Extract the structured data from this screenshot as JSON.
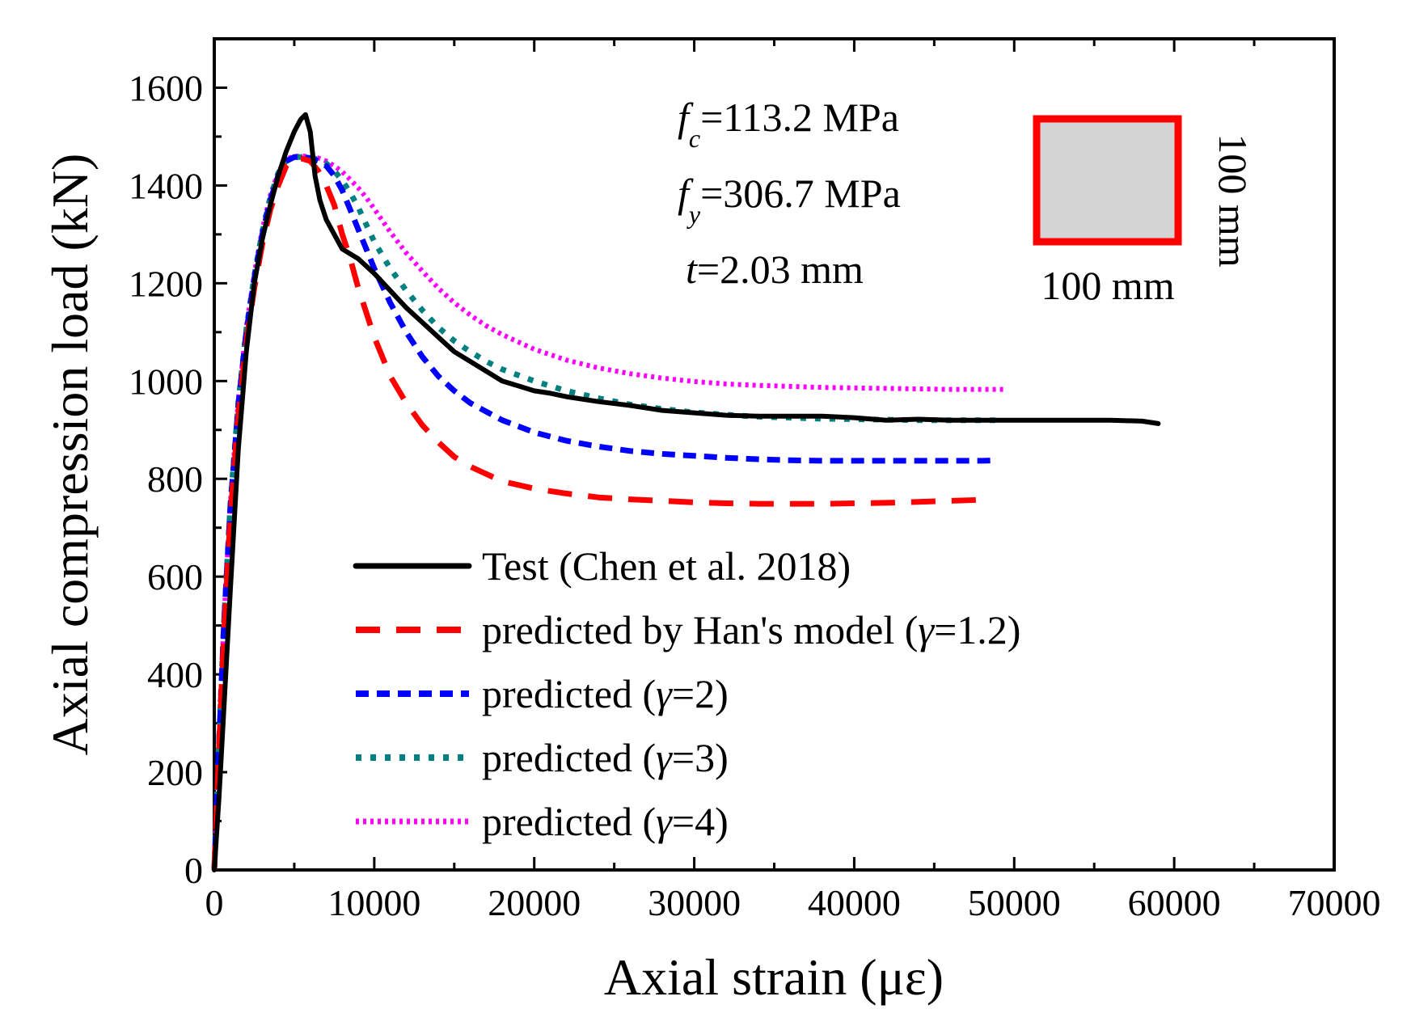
{
  "chart_data": {
    "type": "line",
    "xlabel": "Axial strain (με)",
    "ylabel": "Axial compression load (kN)",
    "xlim": [
      0,
      70000
    ],
    "ylim": [
      0,
      1700
    ],
    "x_ticks": [
      0,
      10000,
      20000,
      30000,
      40000,
      50000,
      60000,
      70000
    ],
    "x_tick_labels": [
      "0",
      "10000",
      "20000",
      "30000",
      "40000",
      "50000",
      "60000",
      "70000"
    ],
    "y_ticks": [
      0,
      200,
      400,
      600,
      800,
      1000,
      1200,
      1400,
      1600
    ],
    "y_tick_labels": [
      "0",
      "200",
      "400",
      "600",
      "800",
      "1000",
      "1200",
      "1400",
      "1600"
    ],
    "grid": false,
    "legend_position": "bottom-center",
    "series": [
      {
        "name": "Test (Chen et al. 2018)",
        "legend_main": "Test (Chen et al. 2018)",
        "legend_greek": "",
        "legend_tail": "",
        "color": "#000000",
        "style": "solid",
        "x": [
          0,
          300,
          600,
          1000,
          1500,
          2000,
          2500,
          3000,
          3500,
          4000,
          4500,
          5000,
          5400,
          5700,
          6000,
          6300,
          6600,
          7000,
          7500,
          8000,
          9000,
          10000,
          11000,
          12000,
          13000,
          14000,
          15000,
          16000,
          17000,
          18000,
          19000,
          20000,
          21000,
          22000,
          24000,
          26000,
          28000,
          30000,
          32000,
          34000,
          36000,
          38000,
          40000,
          42000,
          44000,
          46000,
          48000,
          50000,
          52000,
          54000,
          56000,
          58000,
          59000
        ],
        "y": [
          0,
          150,
          330,
          570,
          860,
          1060,
          1200,
          1290,
          1360,
          1420,
          1470,
          1510,
          1535,
          1545,
          1510,
          1420,
          1370,
          1330,
          1300,
          1270,
          1250,
          1220,
          1185,
          1150,
          1120,
          1090,
          1060,
          1040,
          1020,
          1000,
          990,
          980,
          975,
          968,
          958,
          950,
          940,
          935,
          930,
          928,
          928,
          928,
          925,
          920,
          922,
          920,
          920,
          920,
          920,
          920,
          920,
          918,
          913
        ]
      },
      {
        "name": "predicted by Han's model (γ=1.2)",
        "legend_main": "predicted by Han's model (",
        "legend_greek": "γ",
        "legend_tail": "=1.2)",
        "color": "#ff0000",
        "style": "long-dash",
        "x": [
          0,
          300,
          600,
          1000,
          1500,
          2000,
          2500,
          3000,
          3500,
          4000,
          4500,
          5000,
          5500,
          6000,
          6500,
          7000,
          7500,
          8000,
          8500,
          9000,
          9500,
          10000,
          11000,
          12000,
          13000,
          14000,
          15000,
          16000,
          18000,
          20000,
          22000,
          24000,
          26000,
          28000,
          30000,
          32000,
          34000,
          36000,
          38000,
          40000,
          42000,
          44000,
          46000,
          48000
        ],
        "y": [
          0,
          250,
          480,
          720,
          930,
          1080,
          1190,
          1280,
          1350,
          1400,
          1440,
          1455,
          1455,
          1450,
          1430,
          1400,
          1360,
          1300,
          1250,
          1190,
          1140,
          1090,
          1010,
          955,
          910,
          875,
          845,
          825,
          795,
          780,
          770,
          762,
          758,
          755,
          752,
          750,
          749,
          749,
          749,
          750,
          751,
          753,
          755,
          757
        ]
      },
      {
        "name": "predicted (γ=2)",
        "legend_main": "predicted (",
        "legend_greek": "γ",
        "legend_tail": "=2)",
        "color": "#0000ff",
        "style": "dash",
        "x": [
          0,
          300,
          600,
          1000,
          1500,
          2000,
          2500,
          3000,
          3500,
          4000,
          4500,
          5000,
          5500,
          6000,
          6500,
          7000,
          7500,
          8000,
          8500,
          9000,
          9500,
          10000,
          11000,
          12000,
          13000,
          14000,
          15000,
          16000,
          18000,
          20000,
          22000,
          24000,
          26000,
          28000,
          30000,
          32000,
          34000,
          36000,
          38000,
          40000,
          42000,
          44000,
          46000,
          48000,
          49000
        ],
        "y": [
          0,
          260,
          500,
          740,
          950,
          1100,
          1210,
          1300,
          1370,
          1420,
          1450,
          1458,
          1458,
          1456,
          1450,
          1440,
          1420,
          1390,
          1350,
          1310,
          1270,
          1230,
          1160,
          1100,
          1050,
          1010,
          980,
          955,
          920,
          895,
          878,
          866,
          857,
          851,
          847,
          843,
          840,
          838,
          837,
          837,
          837,
          837,
          837,
          837,
          838
        ]
      },
      {
        "name": "predicted (γ=3)",
        "legend_main": "predicted (",
        "legend_greek": "γ",
        "legend_tail": "=3)",
        "color": "#008080",
        "style": "dot",
        "x": [
          0,
          300,
          600,
          1000,
          1500,
          2000,
          2500,
          3000,
          3500,
          4000,
          4500,
          5000,
          5500,
          6000,
          6500,
          7000,
          7500,
          8000,
          8500,
          9000,
          9500,
          10000,
          11000,
          12000,
          13000,
          14000,
          15000,
          16000,
          17000,
          18000,
          20000,
          22000,
          24000,
          26000,
          28000,
          30000,
          32000,
          34000,
          36000,
          38000,
          40000,
          42000,
          44000,
          46000,
          48000,
          49000
        ],
        "y": [
          0,
          265,
          505,
          745,
          955,
          1105,
          1215,
          1305,
          1375,
          1425,
          1452,
          1458,
          1458,
          1457,
          1453,
          1445,
          1430,
          1410,
          1385,
          1355,
          1320,
          1285,
          1230,
          1185,
          1145,
          1110,
          1082,
          1060,
          1040,
          1024,
          1000,
          980,
          965,
          952,
          943,
          936,
          931,
          927,
          925,
          923,
          922,
          921,
          920,
          920,
          920,
          920
        ]
      },
      {
        "name": "predicted (γ=4)",
        "legend_main": "predicted (",
        "legend_greek": "γ",
        "legend_tail": "=4)",
        "color": "#ff00ff",
        "style": "fine-dot",
        "x": [
          0,
          300,
          600,
          1000,
          1500,
          2000,
          2500,
          3000,
          3500,
          4000,
          4500,
          5000,
          5500,
          6000,
          6500,
          7000,
          7500,
          8000,
          8500,
          9000,
          9500,
          10000,
          11000,
          12000,
          13000,
          14000,
          15000,
          16000,
          17000,
          18000,
          20000,
          22000,
          24000,
          26000,
          28000,
          30000,
          32000,
          34000,
          36000,
          38000,
          40000,
          42000,
          44000,
          46000,
          48000,
          49500
        ],
        "y": [
          0,
          270,
          510,
          750,
          960,
          1110,
          1220,
          1310,
          1380,
          1428,
          1454,
          1460,
          1460,
          1459,
          1456,
          1450,
          1440,
          1428,
          1412,
          1395,
          1375,
          1352,
          1305,
          1262,
          1225,
          1190,
          1160,
          1135,
          1113,
          1095,
          1065,
          1043,
          1027,
          1015,
          1006,
          999,
          994,
          991,
          989,
          987,
          986,
          985,
          984,
          983,
          983,
          983
        ]
      }
    ]
  },
  "annotations": {
    "fc_symbol": "f",
    "fc_sub": "c",
    "fc_value": "=113.2 MPa",
    "fy_symbol": "f",
    "fy_sub": "y",
    "fy_value": "=306.7 MPa",
    "t_symbol": "t",
    "t_value": "=2.03 mm",
    "width_label": "100 mm",
    "height_label": "100 mm"
  },
  "section_icon": {
    "outline_color": "#ff0000",
    "fill_color": "#d4d4d4"
  }
}
